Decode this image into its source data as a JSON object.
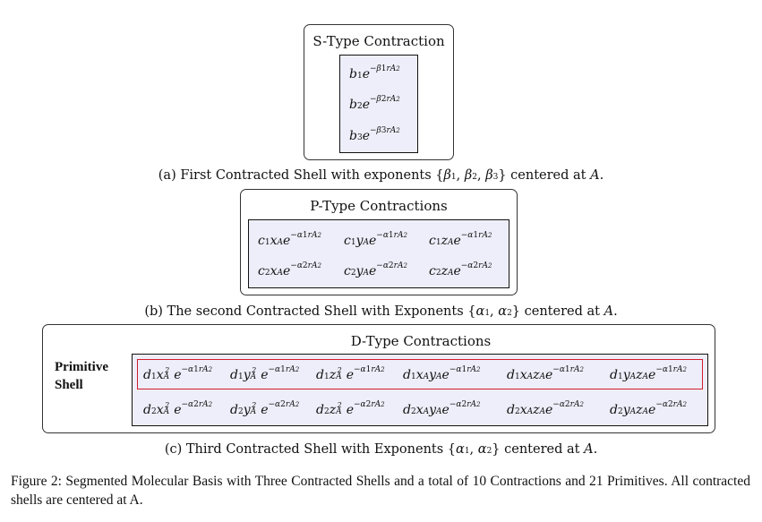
{
  "s_shell": {
    "title": "S-Type Contraction",
    "caption": "(a) First Contracted Shell with exponents {β₁, β₂, β₃} centered at A.",
    "terms": [
      "b1 e^{-β1 r_A^2}",
      "b2 e^{-β2 r_A^2}",
      "b3 e^{-β3 r_A^2}"
    ]
  },
  "p_shell": {
    "title": "P-Type Contractions",
    "caption": "(b) The second Contracted Shell with Exponents {α₁, α₂} centered at A.",
    "terms": [
      [
        "c1 x_A e^{-α1 r_A^2}",
        "c1 y_A e^{-α1 r_A^2}",
        "c1 z_A e^{-α1 r_A^2}"
      ],
      [
        "c2 x_A e^{-α2 r_A^2}",
        "c2 y_A e^{-α2 r_A^2}",
        "c2 z_A e^{-α2 r_A^2}"
      ]
    ]
  },
  "d_shell": {
    "title": "D-Type Contractions",
    "side_label": "Primitive\nShell",
    "caption": "(c) Third Contracted Shell with Exponents {α₁, α₂} centered at A.",
    "terms": [
      [
        "d1 x_A^2 e^{-α1 r_A^2}",
        "d1 y_A^2 e^{-α1 r_A^2}",
        "d1 z_A^2 e^{-α1 r_A^2}",
        "d1 x_A y_A e^{-α1 r_A^2}",
        "d1 x_A z_A e^{-α1 r_A^2}",
        "d1 y_A z_A e^{-α1 r_A^2}"
      ],
      [
        "d2 x_A^2 e^{-α2 r_A^2}",
        "d2 y_A^2 e^{-α2 r_A^2}",
        "d2 z_A^2 e^{-α2 r_A^2}",
        "d2 x_A y_A e^{-α2 r_A^2}",
        "d2 x_A z_A e^{-α2 r_A^2}",
        "d2 y_A z_A e^{-α2 r_A^2}"
      ]
    ]
  },
  "figure_caption": "Figure 2: Segmented Molecular Basis with Three Contracted Shells and a total of 10 Contractions and 21 Primitives. All contracted shells are centered at A.",
  "colors": {
    "inner_fill": "#eeeefa",
    "highlight": "#d21c2a",
    "border": "#333333"
  }
}
